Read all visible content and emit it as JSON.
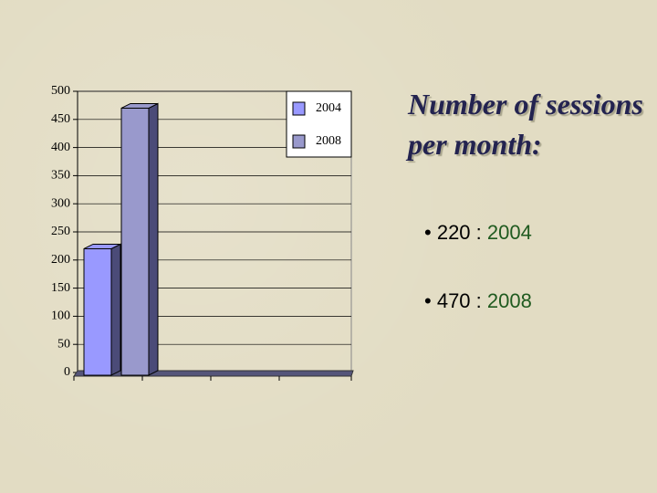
{
  "chart_data": {
    "type": "bar",
    "categories": [
      null,
      null,
      null,
      null
    ],
    "series": [
      {
        "name": "2004",
        "color": "#9999ff",
        "values": [
          220,
          null,
          null,
          null
        ]
      },
      {
        "name": "2008",
        "color": "#9999cc",
        "values": [
          470,
          null,
          null,
          null
        ]
      }
    ],
    "ylim": [
      0,
      500
    ],
    "yticks": [
      0,
      50,
      100,
      150,
      200,
      250,
      300,
      350,
      400,
      450,
      500
    ],
    "grid": true,
    "legend": "top-right"
  },
  "slide": {
    "title": "Number of sessions per month:",
    "bullets": [
      {
        "count": 220,
        "separator": ":",
        "year": "2004"
      },
      {
        "count": 470,
        "separator": ":",
        "year": "2008"
      }
    ]
  }
}
